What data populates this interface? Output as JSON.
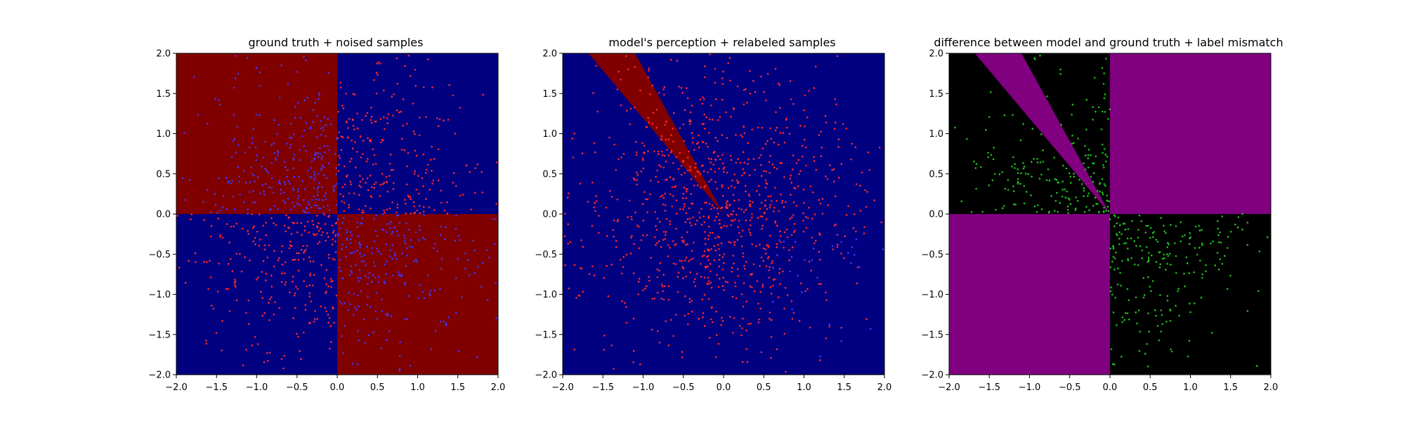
{
  "figure": {
    "background": "#ffffff"
  },
  "chart_data": [
    {
      "type": "scatter",
      "title": "ground truth + noised samples",
      "xlim": [
        -2.0,
        2.0
      ],
      "ylim": [
        -2.0,
        2.0
      ],
      "xticks": [
        "−2.0",
        "−1.5",
        "−1.0",
        "−0.5",
        "0.0",
        "0.5",
        "1.0",
        "1.5",
        "2.0"
      ],
      "yticks": [
        "−2.0",
        "−1.5",
        "−1.0",
        "−0.5",
        "0.0",
        "0.5",
        "1.0",
        "1.5",
        "2.0"
      ],
      "background_regions": {
        "upper-left": "#800000",
        "upper-right": "#000080",
        "lower-left": "#000080",
        "lower-right": "#800000"
      },
      "point_colors": {
        "main": "#ff2a2a",
        "secondary": "#3a3aff"
      },
      "approx_point_count": 1000
    },
    {
      "type": "scatter",
      "title": "model's perception + relabeled samples",
      "xlim": [
        -2.0,
        2.0
      ],
      "ylim": [
        -2.0,
        2.0
      ],
      "xticks": [
        "−2.0",
        "−1.5",
        "−1.0",
        "−0.5",
        "0.0",
        "0.5",
        "1.0",
        "1.5",
        "2.0"
      ],
      "yticks": [
        "−2.0",
        "−1.5",
        "−1.0",
        "−0.5",
        "0.0",
        "0.5",
        "1.0",
        "1.5",
        "2.0"
      ],
      "background": "#000080",
      "wedge": {
        "color": "#800000",
        "from": [
          0.0,
          0.0
        ],
        "to_edge_x": [
          -1.68,
          -1.1
        ],
        "edge_y": 2.0
      },
      "point_colors": {
        "main": "#ff2a2a",
        "secondary": "#3a3aff"
      },
      "approx_point_count": 1000
    },
    {
      "type": "scatter",
      "title": "difference between model and ground truth + label mismatch",
      "xlim": [
        -2.0,
        2.0
      ],
      "ylim": [
        -2.0,
        2.0
      ],
      "xticks": [
        "−2.0",
        "−1.5",
        "−1.0",
        "−0.5",
        "0.0",
        "0.5",
        "1.0",
        "1.5",
        "2.0"
      ],
      "yticks": [
        "−2.0",
        "−1.5",
        "−1.0",
        "−0.5",
        "0.0",
        "0.5",
        "1.0",
        "1.5",
        "2.0"
      ],
      "background_regions": {
        "upper-left": "#000000",
        "upper-right": "#800080",
        "lower-left": "#800080",
        "lower-right": "#000000"
      },
      "wedge": {
        "color": "#800080",
        "from": [
          0.0,
          0.0
        ],
        "to_edge_x": [
          -1.68,
          -1.1
        ],
        "edge_y": 2.0
      },
      "point_colors": {
        "main": "#22c022"
      },
      "approx_point_count": 420
    }
  ]
}
